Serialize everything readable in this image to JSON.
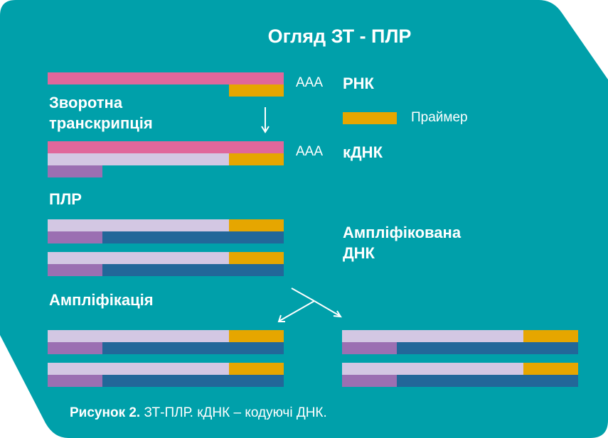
{
  "title": "Огляд ЗТ - ПЛР",
  "labels": {
    "rna": "РНК",
    "cdna": "кДНК",
    "poly_a_1": "AAA",
    "poly_a_2": "AAA",
    "primer": "Праймер",
    "reverse_transcription_line1": "Зворотна",
    "reverse_transcription_line2": "транскрипція",
    "pcr": "ПЛР",
    "amplified_dna_line1": "Ампліфікована",
    "amplified_dna_line2": "ДНК",
    "amplification": "Ампліфікація"
  },
  "caption": {
    "bold": "Рисунок 2.",
    "text": " ЗТ-ПЛР. кДНК – кодуючі ДНК."
  },
  "colors": {
    "background": "#00a0aa",
    "rna_strand": "#e0679b",
    "primer": "#e6a600",
    "dna_strand_light": "#d3c7e3",
    "dna_strand_purple": "#9b6fb2",
    "dna_strand_navy": "#226799"
  }
}
